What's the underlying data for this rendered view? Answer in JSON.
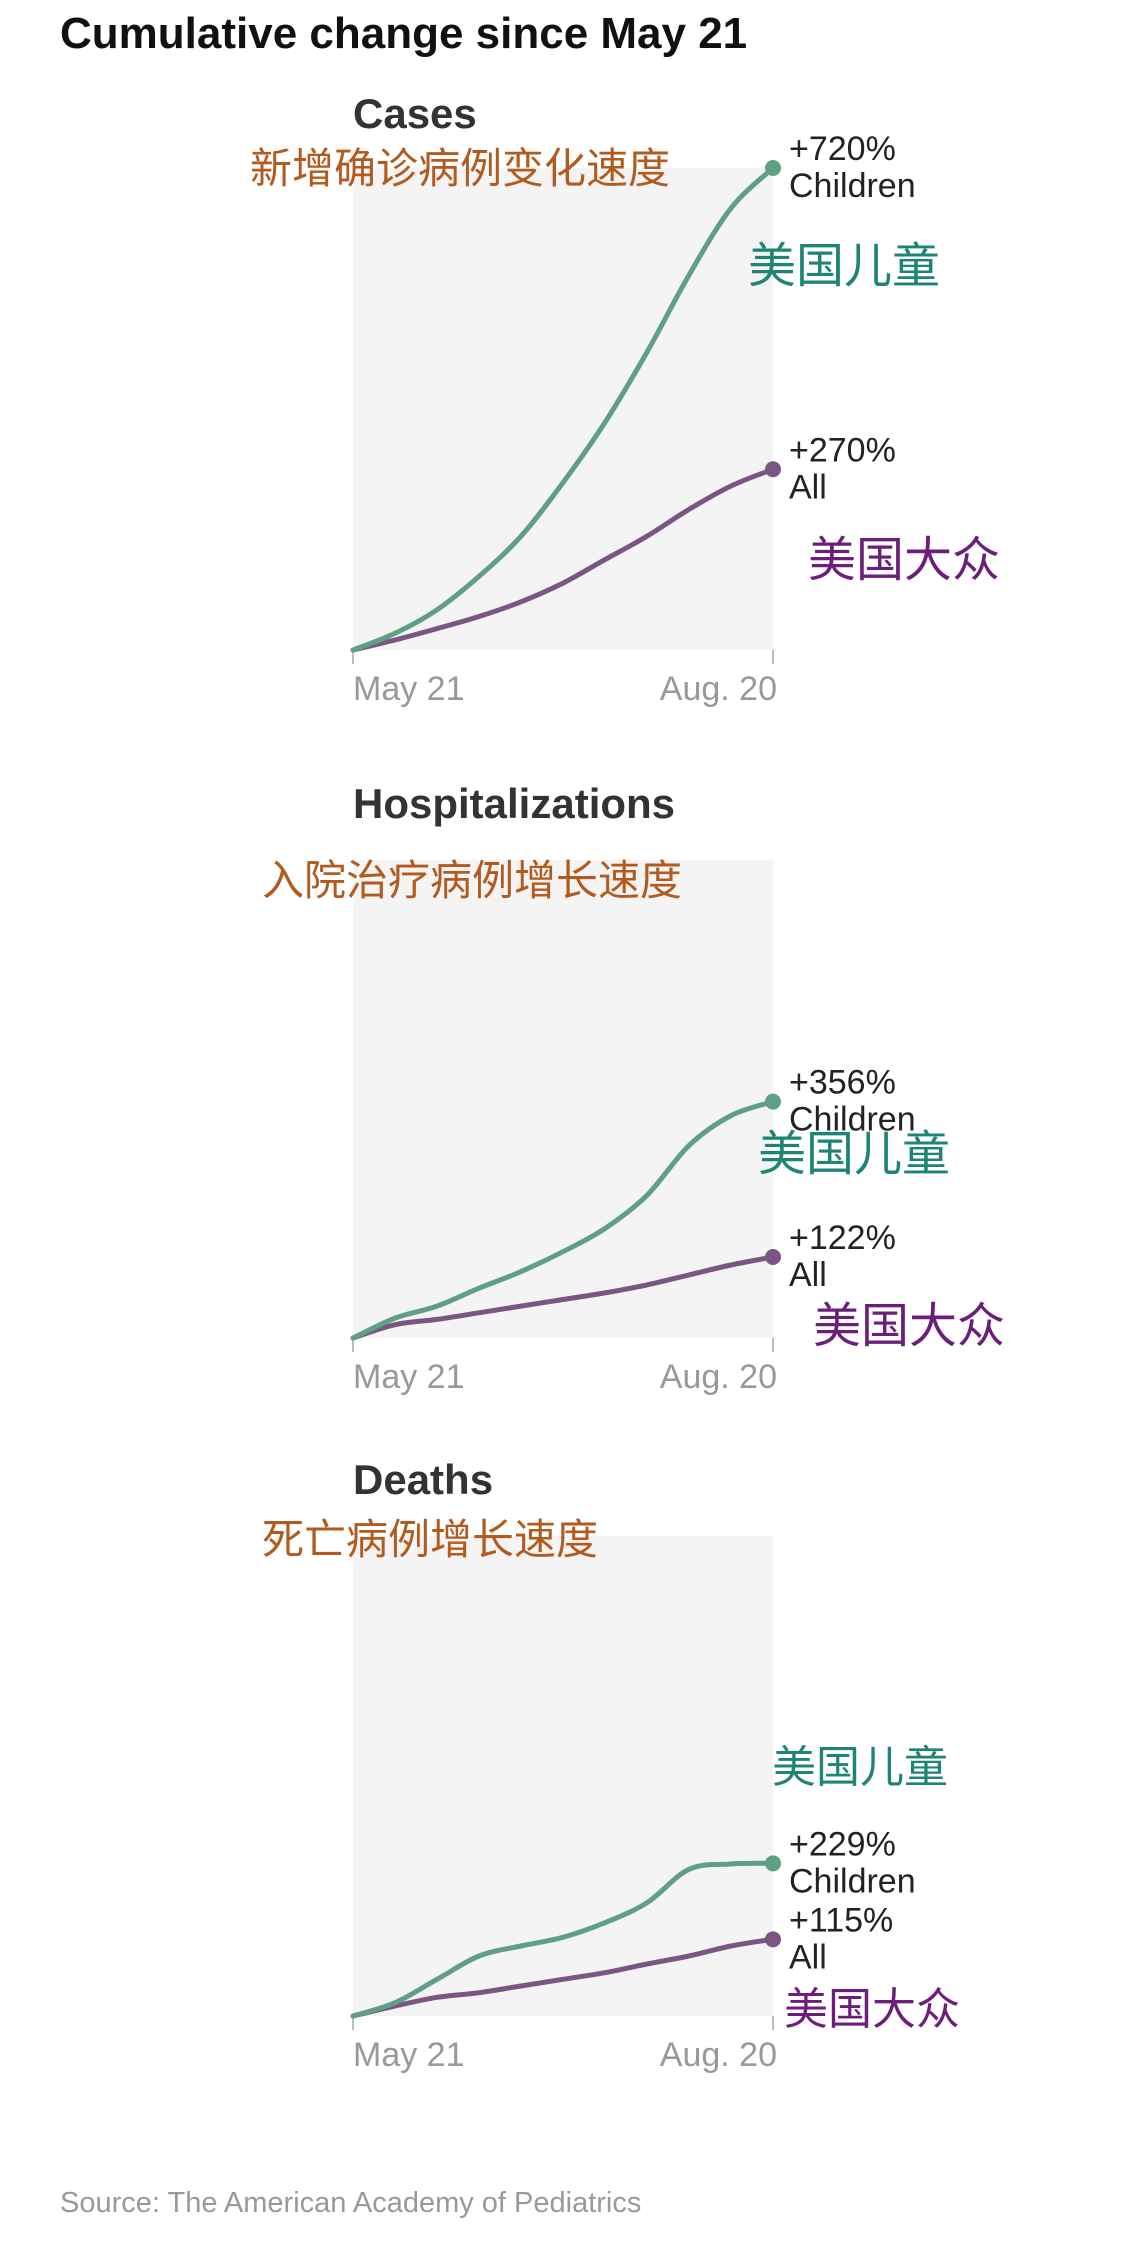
{
  "title": "Cumulative change since May 21",
  "source": "Source: The American Academy of Pediatrics",
  "colors": {
    "children": "#5f9f86",
    "all": "#7a5683",
    "annotation_orange": "#b35a1f",
    "annotation_teal": "#1e8476",
    "annotation_purple": "#6c1f7a",
    "plot_bg": "#f4f4f4"
  },
  "chart_data": [
    {
      "type": "line",
      "title": "Cases",
      "annotation": "新增确诊病例变化速度",
      "x_labels": [
        "May 21",
        "Aug. 20"
      ],
      "ylim": [
        0,
        720
      ],
      "series": [
        {
          "name": "Children",
          "label_value": "+720%",
          "annotation": "美国儿童",
          "values": [
            0,
            25,
            60,
            110,
            170,
            250,
            340,
            445,
            560,
            660,
            720
          ]
        },
        {
          "name": "All",
          "label_value": "+270%",
          "annotation": "美国大众",
          "values": [
            0,
            15,
            32,
            50,
            72,
            100,
            135,
            170,
            210,
            245,
            270
          ]
        }
      ]
    },
    {
      "type": "line",
      "title": "Hospitalizations",
      "annotation": "入院治疗病例增长速度",
      "x_labels": [
        "May 21",
        "Aug. 20"
      ],
      "ylim": [
        0,
        720
      ],
      "series": [
        {
          "name": "Children",
          "label_value": "+356%",
          "annotation": "美国儿童",
          "values": [
            0,
            30,
            48,
            75,
            100,
            130,
            165,
            215,
            290,
            335,
            356
          ]
        },
        {
          "name": "All",
          "label_value": "+122%",
          "annotation": "美国大众",
          "values": [
            0,
            20,
            28,
            38,
            48,
            58,
            68,
            80,
            95,
            110,
            122
          ]
        }
      ]
    },
    {
      "type": "line",
      "title": "Deaths",
      "annotation": "死亡病例增长速度",
      "x_labels": [
        "May 21",
        "Aug. 20"
      ],
      "ylim": [
        0,
        720
      ],
      "series": [
        {
          "name": "Children",
          "label_value": "+229%",
          "annotation": "美国儿童",
          "values": [
            0,
            20,
            55,
            90,
            105,
            118,
            140,
            170,
            220,
            228,
            229
          ]
        },
        {
          "name": "All",
          "label_value": "+115%",
          "annotation": "美国大众",
          "values": [
            0,
            15,
            28,
            35,
            45,
            55,
            65,
            78,
            90,
            105,
            115
          ]
        }
      ]
    }
  ]
}
